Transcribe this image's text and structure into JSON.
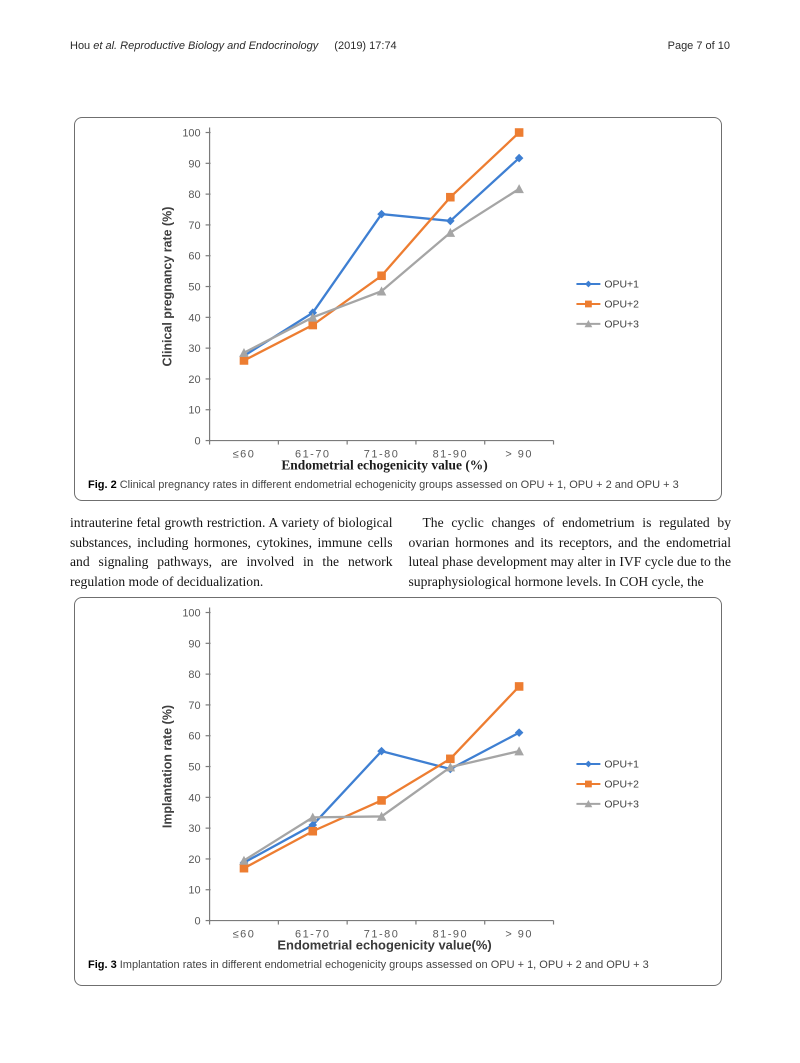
{
  "header": {
    "author": "Hou",
    "etal": "et al.",
    "journal": "Reproductive Biology and Endocrinology",
    "issue": "(2019) 17:74",
    "page": "Page 7 of 10"
  },
  "figures": [
    {
      "caption_label": "Fig. 2",
      "caption_text": "Clinical pregnancy rates in different endometrial echogenicity groups assessed on OPU + 1, OPU + 2 and OPU + 3"
    },
    {
      "caption_label": "Fig. 3",
      "caption_text": "Implantation rates in different endometrial echogenicity groups assessed on OPU + 1, OPU + 2 and OPU + 3"
    }
  ],
  "body_text": {
    "left_column": "intrauterine fetal growth restriction. A variety of biological substances, including hormones, cytokines, immune cells and signaling pathways, are involved in the network regulation mode of decidualization.",
    "right_column": "The cyclic changes of endometrium is regulated by ovarian hormones and its receptors, and the endometrial luteal phase development may alter in IVF cycle due to the supraphysiological hormone levels. In COH cycle, the"
  },
  "chart_data": [
    {
      "type": "line",
      "title": "",
      "categories": [
        "≤60",
        "61-70",
        "71-80",
        "81-90",
        "> 90"
      ],
      "series": [
        {
          "name": "OPU+1",
          "color": "#3E7FD2",
          "marker": "diamond",
          "values": [
            27.5,
            41.5,
            73.5,
            71.3,
            91.7
          ]
        },
        {
          "name": "OPU+2",
          "color": "#ED7D31",
          "marker": "square",
          "values": [
            26,
            37.5,
            53.5,
            79,
            100
          ]
        },
        {
          "name": "OPU+3",
          "color": "#A5A5A5",
          "marker": "triangle",
          "values": [
            28.5,
            40,
            48.5,
            67.5,
            81.7
          ]
        }
      ],
      "xlabel": "Endometrial  echogenicity value (%)",
      "ylabel": "Clinical pregnancy rate (%)",
      "ylim": [
        0,
        100
      ],
      "ytick_step": 10,
      "grid": false,
      "legend_position": "right"
    },
    {
      "type": "line",
      "title": "",
      "categories": [
        "≤60",
        "61-70",
        "71-80",
        "81-90",
        "> 90"
      ],
      "series": [
        {
          "name": "OPU+1",
          "color": "#3E7FD2",
          "marker": "diamond",
          "values": [
            18.8,
            31,
            55,
            49.2,
            61
          ]
        },
        {
          "name": "OPU+2",
          "color": "#ED7D31",
          "marker": "square",
          "values": [
            17,
            29,
            39,
            52.5,
            76
          ]
        },
        {
          "name": "OPU+3",
          "color": "#A5A5A5",
          "marker": "triangle",
          "values": [
            19.5,
            33.5,
            33.8,
            49.8,
            55
          ]
        }
      ],
      "xlabel": "Endometrial echogenicity value(%)",
      "ylabel": "Implantation rate (%)",
      "ylim": [
        0,
        100
      ],
      "ytick_step": 10,
      "grid": false,
      "legend_position": "right"
    }
  ]
}
